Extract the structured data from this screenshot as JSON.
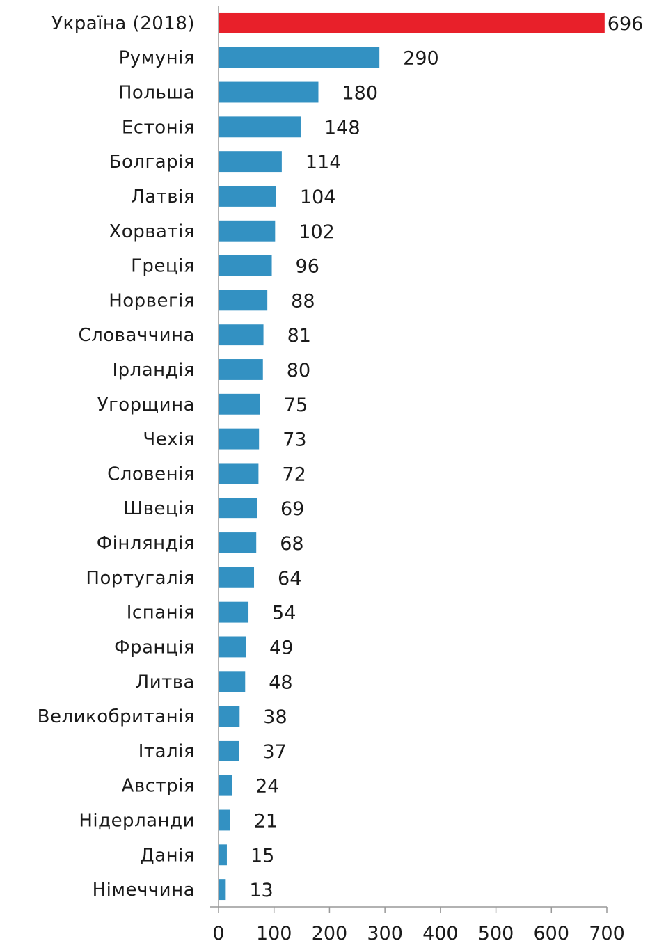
{
  "chart_data": {
    "type": "bar",
    "orientation": "horizontal",
    "categories": [
      "Україна (2018)",
      "Румунія",
      "Польша",
      "Естонія",
      "Болгарія",
      "Латвія",
      "Хорватія",
      "Греція",
      "Норвегія",
      "Словаччина",
      "Ірландія",
      "Угорщина",
      "Чехія",
      "Словенія",
      "Швеція",
      "Фінляндія",
      "Португалія",
      "Іспанія",
      "Франція",
      "Литва",
      "Великобританія",
      "Італія",
      "Австрія",
      "Нідерланди",
      "Данія",
      "Німеччина"
    ],
    "values": [
      696,
      290,
      180,
      148,
      114,
      104,
      102,
      96,
      88,
      81,
      80,
      75,
      73,
      72,
      69,
      68,
      64,
      54,
      49,
      48,
      38,
      37,
      24,
      21,
      15,
      13
    ],
    "value_labels": [
      "696",
      "290",
      "180",
      "148",
      "114",
      "104",
      "102",
      "96",
      "88",
      "81",
      "80",
      "75",
      "73",
      "72",
      "69",
      "68",
      "64",
      "54",
      "49",
      "48",
      "38",
      "37",
      "24",
      "21",
      "15",
      "13"
    ],
    "highlight_index": 0,
    "colors": {
      "bar": "#3391c2",
      "highlight": "#e8202a"
    },
    "xlim": [
      0,
      700
    ],
    "xticks": [
      0,
      100,
      200,
      300,
      400,
      500,
      600,
      700
    ],
    "xtick_labels": [
      "0",
      "100",
      "200",
      "300",
      "400",
      "500",
      "600",
      "700"
    ],
    "grid": false,
    "title": "",
    "xlabel": "",
    "ylabel": ""
  }
}
